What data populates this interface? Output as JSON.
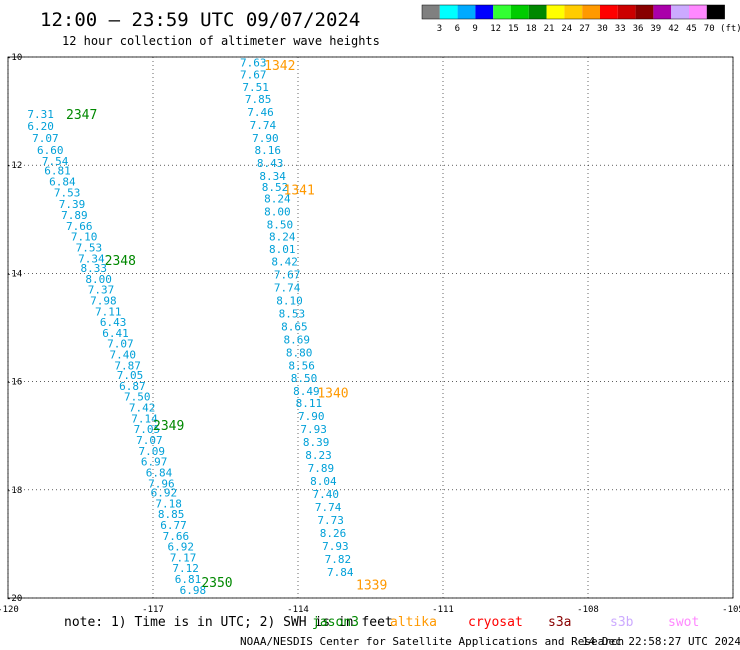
{
  "title": "12:00 – 23:59 UTC 09/07/2024",
  "subtitle": "12 hour collection of altimeter wave heights",
  "legend": {
    "colors": [
      "#808080",
      "#00ffff",
      "#00aaff",
      "#0000ff",
      "#33ff33",
      "#00cc00",
      "#008800",
      "#ffff00",
      "#ffcc00",
      "#ff9900",
      "#ff0000",
      "#cc0000",
      "#880000",
      "#aa00aa",
      "#ccaaff",
      "#ff88ff",
      "#000000"
    ],
    "labels": [
      "3",
      "6",
      "9",
      "12",
      "15",
      "18",
      "21",
      "24",
      "27",
      "30",
      "33",
      "36",
      "39",
      "42",
      "45",
      "70 (ft)"
    ]
  },
  "chart_data": {
    "type": "scatter",
    "xlim": [
      -120,
      -105
    ],
    "ylim": [
      -20,
      -10
    ],
    "xticks": [
      "-120",
      "-117",
      "-114",
      "-111",
      "-108",
      "-105"
    ],
    "yticks": [
      "-10",
      "-12",
      "-14",
      "-16",
      "-18",
      "-20"
    ],
    "grid": true,
    "series": [
      {
        "name": "jason3",
        "color": "#00a0d8",
        "points": [
          [
            -119.6,
            -11.05,
            "7.31"
          ],
          [
            -119.6,
            -11.28,
            "6.20"
          ],
          [
            -119.5,
            -11.5,
            "7.07"
          ],
          [
            -119.4,
            -11.72,
            "6.60"
          ],
          [
            -119.3,
            -11.92,
            "7.54"
          ],
          [
            -119.25,
            -12.1,
            "6.81"
          ],
          [
            -119.15,
            -12.3,
            "6.84"
          ],
          [
            -119.05,
            -12.5,
            "7.53"
          ],
          [
            -118.95,
            -12.72,
            "7.39"
          ],
          [
            -118.9,
            -12.92,
            "7.89"
          ],
          [
            -118.8,
            -13.12,
            "7.66"
          ],
          [
            -118.7,
            -13.32,
            "7.10"
          ],
          [
            -118.6,
            -13.52,
            "7.53"
          ],
          [
            -118.55,
            -13.72,
            "7.34"
          ],
          [
            -118.5,
            -13.9,
            "8.33"
          ],
          [
            -118.4,
            -14.1,
            "8.00"
          ],
          [
            -118.35,
            -14.3,
            "7.37"
          ],
          [
            -118.3,
            -14.5,
            "7.98"
          ],
          [
            -118.2,
            -14.7,
            "7.11"
          ],
          [
            -118.1,
            -14.9,
            "6.43"
          ],
          [
            -118.05,
            -15.1,
            "6.41"
          ],
          [
            -117.95,
            -15.3,
            "7.07"
          ],
          [
            -117.9,
            -15.5,
            "7.40"
          ],
          [
            -117.8,
            -15.7,
            "7.87"
          ],
          [
            -117.75,
            -15.88,
            "7.05"
          ],
          [
            -117.7,
            -16.08,
            "6.87"
          ],
          [
            -117.6,
            -16.28,
            "7.50"
          ],
          [
            -117.5,
            -16.48,
            "7.42"
          ],
          [
            -117.45,
            -16.68,
            "7.14"
          ],
          [
            -117.4,
            -16.88,
            "7.05"
          ],
          [
            -117.35,
            -17.08,
            "7.07"
          ],
          [
            -117.3,
            -17.28,
            "7.09"
          ],
          [
            -117.25,
            -17.48,
            "6.97"
          ],
          [
            -117.15,
            -17.68,
            "6.84"
          ],
          [
            -117.1,
            -17.88,
            "7.96"
          ],
          [
            -117.05,
            -18.05,
            "6.92"
          ],
          [
            -116.95,
            -18.25,
            "7.18"
          ],
          [
            -116.9,
            -18.45,
            "8.85"
          ],
          [
            -116.85,
            -18.65,
            "6.77"
          ],
          [
            -116.8,
            -18.85,
            "7.66"
          ],
          [
            -116.7,
            -19.05,
            "6.92"
          ],
          [
            -116.65,
            -19.25,
            "7.17"
          ],
          [
            -116.6,
            -19.45,
            "7.12"
          ],
          [
            -116.55,
            -19.65,
            "6.81"
          ],
          [
            -116.45,
            -19.85,
            "6.98"
          ],
          [
            -115.2,
            -10.1,
            "7.63"
          ],
          [
            -115.2,
            -10.32,
            "7.67"
          ],
          [
            -115.15,
            -10.55,
            "7.51"
          ],
          [
            -115.1,
            -10.78,
            "7.85"
          ],
          [
            -115.05,
            -11.02,
            "7.46"
          ],
          [
            -115.0,
            -11.26,
            "7.74"
          ],
          [
            -114.95,
            -11.5,
            "7.90"
          ],
          [
            -114.9,
            -11.72,
            "8.16"
          ],
          [
            -114.85,
            -11.96,
            "8.43"
          ],
          [
            -114.8,
            -12.2,
            "8.34"
          ],
          [
            -114.75,
            -12.4,
            "8.52"
          ],
          [
            -114.7,
            -12.62,
            "8.24"
          ],
          [
            -114.7,
            -12.86,
            "8.00"
          ],
          [
            -114.65,
            -13.1,
            "8.50"
          ],
          [
            -114.6,
            -13.32,
            "8.24"
          ],
          [
            -114.6,
            -13.55,
            "8.01"
          ],
          [
            -114.55,
            -13.78,
            "8.42"
          ],
          [
            -114.5,
            -14.02,
            "7.67"
          ],
          [
            -114.5,
            -14.26,
            "7.74"
          ],
          [
            -114.45,
            -14.5,
            "8.10"
          ],
          [
            -114.4,
            -14.74,
            "8.53"
          ],
          [
            -114.35,
            -14.98,
            "8.65"
          ],
          [
            -114.3,
            -15.22,
            "8.69"
          ],
          [
            -114.25,
            -15.46,
            "8.80"
          ],
          [
            -114.2,
            -15.7,
            "8.56"
          ],
          [
            -114.15,
            -15.93,
            "8.50"
          ],
          [
            -114.1,
            -16.17,
            "8.49"
          ],
          [
            -114.05,
            -16.4,
            "8.11"
          ],
          [
            -114.0,
            -16.64,
            "7.90"
          ],
          [
            -113.95,
            -16.88,
            "7.93"
          ],
          [
            -113.9,
            -17.12,
            "8.39"
          ],
          [
            -113.85,
            -17.36,
            "8.23"
          ],
          [
            -113.8,
            -17.6,
            "7.89"
          ],
          [
            -113.75,
            -17.84,
            "8.04"
          ],
          [
            -113.7,
            -18.08,
            "7.40"
          ],
          [
            -113.65,
            -18.32,
            "7.74"
          ],
          [
            -113.6,
            -18.56,
            "7.73"
          ],
          [
            -113.55,
            -18.8,
            "8.26"
          ],
          [
            -113.5,
            -19.04,
            "7.93"
          ],
          [
            -113.45,
            -19.28,
            "7.82"
          ],
          [
            -113.4,
            -19.52,
            "7.84"
          ]
        ]
      }
    ],
    "pass_labels": [
      {
        "text": "1342",
        "x": -114.7,
        "y": -10.15,
        "color": "#ff9900"
      },
      {
        "text": "2347",
        "x": -118.8,
        "y": -11.05,
        "color": "#008800"
      },
      {
        "text": "1341",
        "x": -114.3,
        "y": -12.45,
        "color": "#ff9900"
      },
      {
        "text": "2348",
        "x": -118.0,
        "y": -13.75,
        "color": "#008800"
      },
      {
        "text": "1340",
        "x": -113.6,
        "y": -16.2,
        "color": "#ff9900"
      },
      {
        "text": "2349",
        "x": -117.0,
        "y": -16.8,
        "color": "#008800"
      },
      {
        "text": "2350",
        "x": -116.0,
        "y": -19.7,
        "color": "#008800"
      },
      {
        "text": "1339",
        "x": -112.8,
        "y": -19.75,
        "color": "#ff9900"
      }
    ]
  },
  "footer": {
    "note": "note:  1) Time is in UTC; 2) SWH is in feet",
    "missions": [
      {
        "name": "jason3",
        "color": "#008800"
      },
      {
        "name": "altika",
        "color": "#ff9900"
      },
      {
        "name": "cryosat",
        "color": "#ff0000"
      },
      {
        "name": "s3a",
        "color": "#880000"
      },
      {
        "name": "s3b",
        "color": "#ccaaff"
      },
      {
        "name": "swot",
        "color": "#ff88ff"
      }
    ],
    "credit_org": "NOAA/NESDIS Center for Satellite Applications and Research",
    "credit_time": "14 Dec 22:58:27 UTC 2024"
  }
}
